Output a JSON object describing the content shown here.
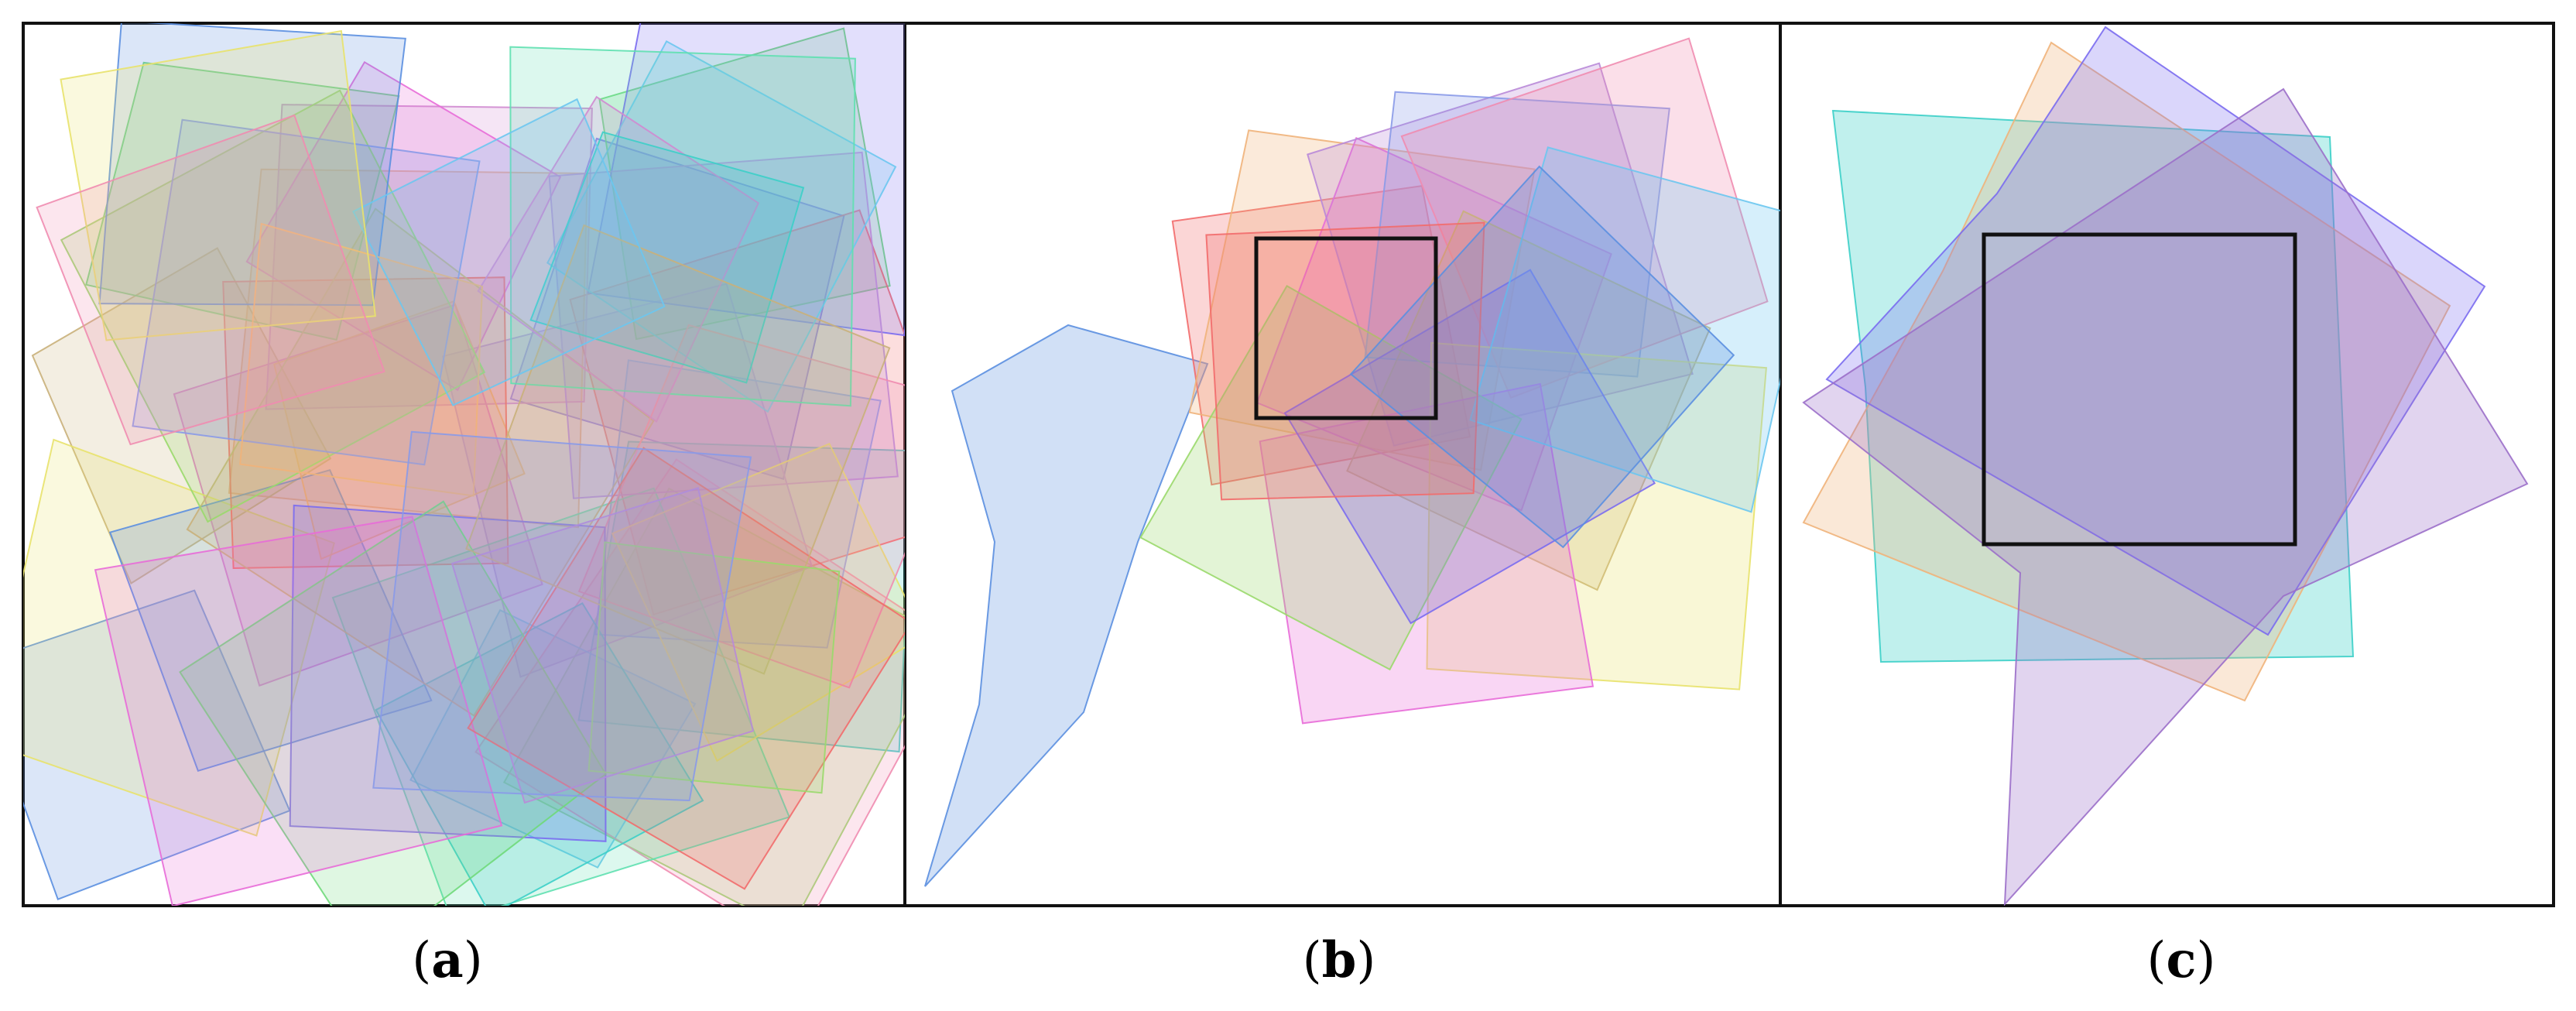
{
  "figure": {
    "panels": [
      {
        "id": "a",
        "caption_open": "(",
        "caption_letter": "a",
        "caption_close": ")",
        "has_box": false
      },
      {
        "id": "b",
        "caption_open": "(",
        "caption_letter": "b",
        "caption_close": ")",
        "has_box": true
      },
      {
        "id": "c",
        "caption_open": "(",
        "caption_letter": "c",
        "caption_close": ")",
        "has_box": true
      }
    ],
    "colors": [
      "#5b8fe0",
      "#7a6cf0",
      "#3ccfc8",
      "#f0b37a",
      "#6fd97a",
      "#e86cd8",
      "#f26b6b",
      "#c9b07a",
      "#9ad96b",
      "#b98ad8",
      "#6cc6f0",
      "#e8e26b",
      "#f08cb0",
      "#8a9ae8",
      "#5fe0b0",
      "#d08ad0"
    ],
    "box_stroke": "#111111",
    "frame_stroke": "#111111"
  }
}
